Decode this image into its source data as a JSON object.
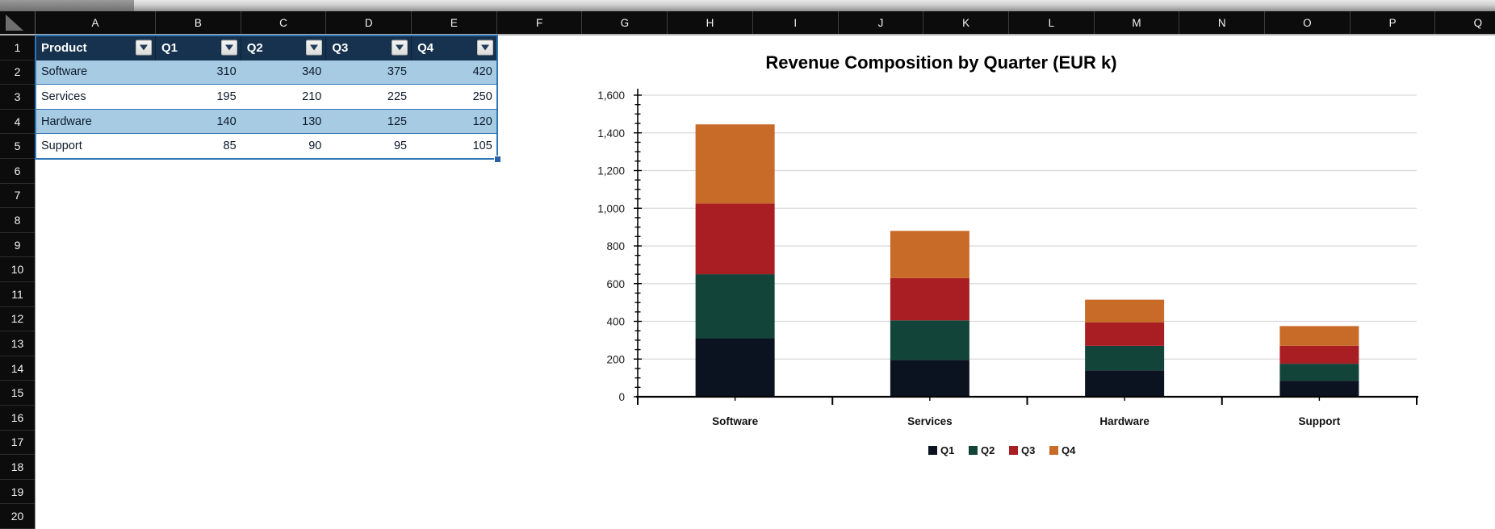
{
  "spreadsheet": {
    "column_letters": [
      "A",
      "B",
      "C",
      "D",
      "E",
      "F",
      "G",
      "H",
      "I",
      "J",
      "K",
      "L",
      "M",
      "N",
      "O",
      "P",
      "Q"
    ],
    "row_numbers": [
      1,
      2,
      3,
      4,
      5,
      6,
      7,
      8,
      9,
      10,
      11,
      12,
      13,
      14,
      15,
      16,
      17,
      18,
      19,
      20
    ],
    "table": {
      "headers": [
        "Product",
        "Q1",
        "Q2",
        "Q3",
        "Q4"
      ],
      "rows": [
        {
          "product": "Software",
          "values": [
            310,
            340,
            375,
            420
          ]
        },
        {
          "product": "Services",
          "values": [
            195,
            210,
            225,
            250
          ]
        },
        {
          "product": "Hardware",
          "values": [
            140,
            130,
            125,
            120
          ]
        },
        {
          "product": "Support",
          "values": [
            85,
            90,
            95,
            105
          ]
        }
      ],
      "header_bg": "#16324f",
      "band_color": "#a7cbe3",
      "border_color": "#2e75b6"
    }
  },
  "chart_data": {
    "type": "bar",
    "stacked": true,
    "title": "Revenue Composition by Quarter (EUR k)",
    "categories": [
      "Software",
      "Services",
      "Hardware",
      "Support"
    ],
    "series": [
      {
        "name": "Q1",
        "color": "#0b1220",
        "values": [
          310,
          195,
          140,
          85
        ]
      },
      {
        "name": "Q2",
        "color": "#124439",
        "values": [
          340,
          210,
          130,
          90
        ]
      },
      {
        "name": "Q3",
        "color": "#a81e22",
        "values": [
          375,
          225,
          125,
          95
        ]
      },
      {
        "name": "Q4",
        "color": "#c86a28",
        "values": [
          420,
          250,
          120,
          105
        ]
      }
    ],
    "ylim": [
      0,
      1600
    ],
    "ytick_major": 200,
    "ytick_minor": 50,
    "grid": true,
    "gridline_color": "#d9d9d9",
    "legend_position": "bottom",
    "xlabel": "",
    "ylabel": ""
  }
}
